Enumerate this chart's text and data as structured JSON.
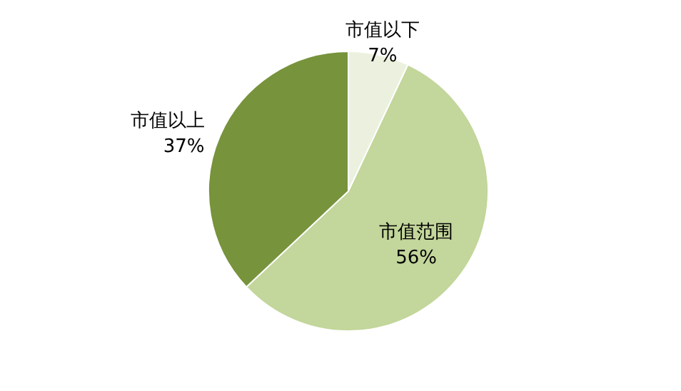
{
  "chart_data": {
    "type": "pie",
    "categories": [
      "市值以下",
      "市值范围",
      "市值以上"
    ],
    "values": [
      7,
      56,
      37
    ],
    "value_labels": [
      "7%",
      "56%",
      "37%"
    ],
    "colors": [
      "#ebf1de",
      "#c3d69b",
      "#77933c"
    ]
  }
}
